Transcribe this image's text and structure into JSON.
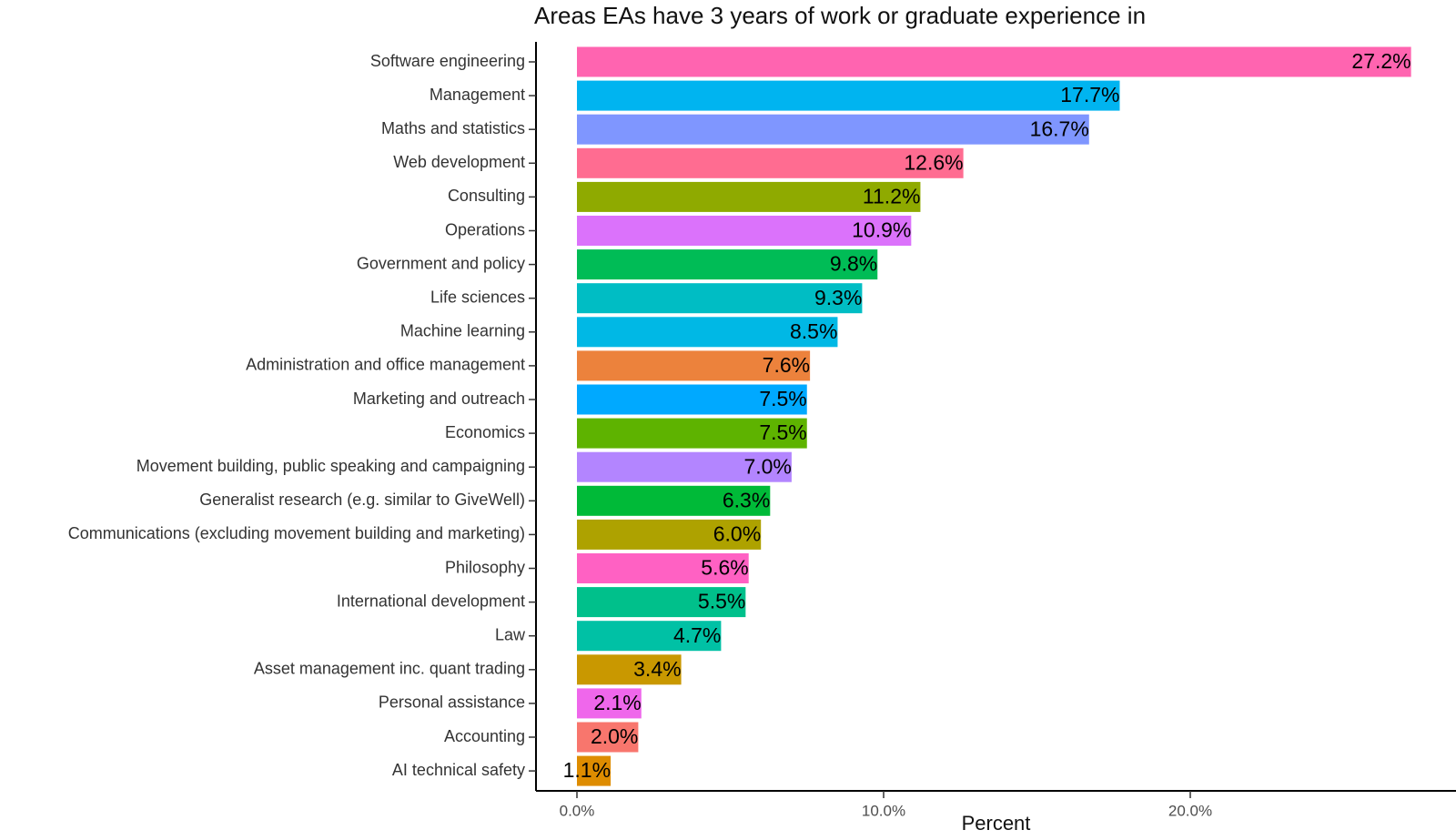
{
  "chart_data": {
    "type": "bar",
    "orientation": "horizontal",
    "title": "Areas EAs have 3 years of work or graduate experience in",
    "xlabel": "Percent",
    "ylabel": "",
    "xlim": [
      -0.0136,
      0.2836
    ],
    "x_ticks": [
      {
        "value": 0.0,
        "label": "0.0%"
      },
      {
        "value": 0.1,
        "label": "10.0%"
      },
      {
        "value": 0.2,
        "label": "20.0%"
      }
    ],
    "grid": false,
    "legend": "none",
    "categories": [
      "Software engineering",
      "Management",
      "Maths and statistics",
      "Web development",
      "Consulting",
      "Operations",
      "Government and policy",
      "Life sciences",
      "Machine learning",
      "Administration and office management",
      "Marketing and outreach",
      "Economics",
      "Movement building, public speaking and campaigning",
      "Generalist research (e.g. similar to GiveWell)",
      "Communications (excluding movement building and marketing)",
      "Philosophy",
      "International development",
      "Law",
      "Asset management inc. quant trading",
      "Personal assistance",
      "Accounting",
      "AI technical safety"
    ],
    "values": [
      0.272,
      0.177,
      0.167,
      0.126,
      0.112,
      0.109,
      0.098,
      0.093,
      0.085,
      0.076,
      0.075,
      0.075,
      0.07,
      0.063,
      0.06,
      0.056,
      0.055,
      0.047,
      0.034,
      0.021,
      0.02,
      0.011
    ],
    "value_labels": [
      "27.2%",
      "17.7%",
      "16.7%",
      "12.6%",
      "11.2%",
      "10.9%",
      "9.8%",
      "9.3%",
      "8.5%",
      "7.6%",
      "7.5%",
      "7.5%",
      "7.0%",
      "6.3%",
      "6.0%",
      "5.6%",
      "5.5%",
      "4.7%",
      "3.4%",
      "2.1%",
      "2.0%",
      "1.1%"
    ],
    "colors": [
      "#FF64B0",
      "#00B4F0",
      "#7F96FF",
      "#FF6C91",
      "#8FAA00",
      "#DB72FB",
      "#00BC56",
      "#00BDC4",
      "#00B8E5",
      "#EC823C",
      "#00A9FF",
      "#5EB300",
      "#B385FF",
      "#00BA38",
      "#AEA200",
      "#FF61C3",
      "#00C08B",
      "#00C1A5",
      "#C99800",
      "#EF67EB",
      "#F8766D",
      "#DE8C00"
    ]
  }
}
